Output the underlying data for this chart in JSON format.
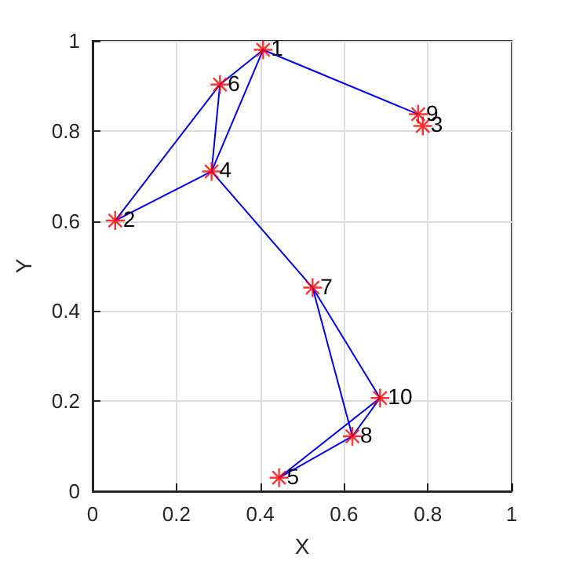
{
  "chart_data": {
    "type": "line",
    "xlabel": "X",
    "ylabel": "Y",
    "xlim": [
      0,
      1
    ],
    "ylim": [
      0,
      1
    ],
    "xticks": [
      0,
      0.2,
      0.4,
      0.6,
      0.8,
      1
    ],
    "yticks": [
      0,
      0.2,
      0.4,
      0.6,
      0.8,
      1
    ],
    "grid": true,
    "marker": "none",
    "line_style": "solid",
    "series": [
      {
        "color": "#0000ff",
        "x": [
          0.777,
          0.407,
          0.304,
          0.284,
          0.054,
          0.304
        ],
        "values": [
          0.837,
          0.98,
          0.903,
          0.71,
          0.601,
          0.903
        ]
      },
      {
        "color": "#0000ff",
        "x": [
          0.407,
          0.284,
          0.525,
          0.62,
          0.686,
          0.525
        ],
        "values": [
          0.98,
          0.71,
          0.452,
          0.122,
          0.207,
          0.452
        ]
      },
      {
        "color": "#0000ff",
        "x": [
          0.686,
          0.445,
          0.62
        ],
        "values": [
          0.207,
          0.03,
          0.122
        ]
      },
      {
        "type": "scatter",
        "color": "#ff0000",
        "marker": "cross",
        "x": [
          0.407,
          0.054,
          0.788,
          0.284,
          0.445,
          0.304,
          0.525,
          0.62,
          0.777,
          0.686
        ],
        "values": [
          0.98,
          0.601,
          0.811,
          0.71,
          0.03,
          0.903,
          0.452,
          0.122,
          0.837,
          0.207
        ]
      }
    ],
    "annotations": [
      {
        "text": "1",
        "x": 0.407,
        "y": 0.98
      },
      {
        "text": "2",
        "x": 0.054,
        "y": 0.601
      },
      {
        "text": "3",
        "x": 0.788,
        "y": 0.811
      },
      {
        "text": "4",
        "x": 0.284,
        "y": 0.71
      },
      {
        "text": "5",
        "x": 0.445,
        "y": 0.03
      },
      {
        "text": "6",
        "x": 0.304,
        "y": 0.903
      },
      {
        "text": "7",
        "x": 0.525,
        "y": 0.452
      },
      {
        "text": "8",
        "x": 0.62,
        "y": 0.122
      },
      {
        "text": "9",
        "x": 0.777,
        "y": 0.837
      },
      {
        "text": "10",
        "x": 0.686,
        "y": 0.207
      }
    ]
  }
}
